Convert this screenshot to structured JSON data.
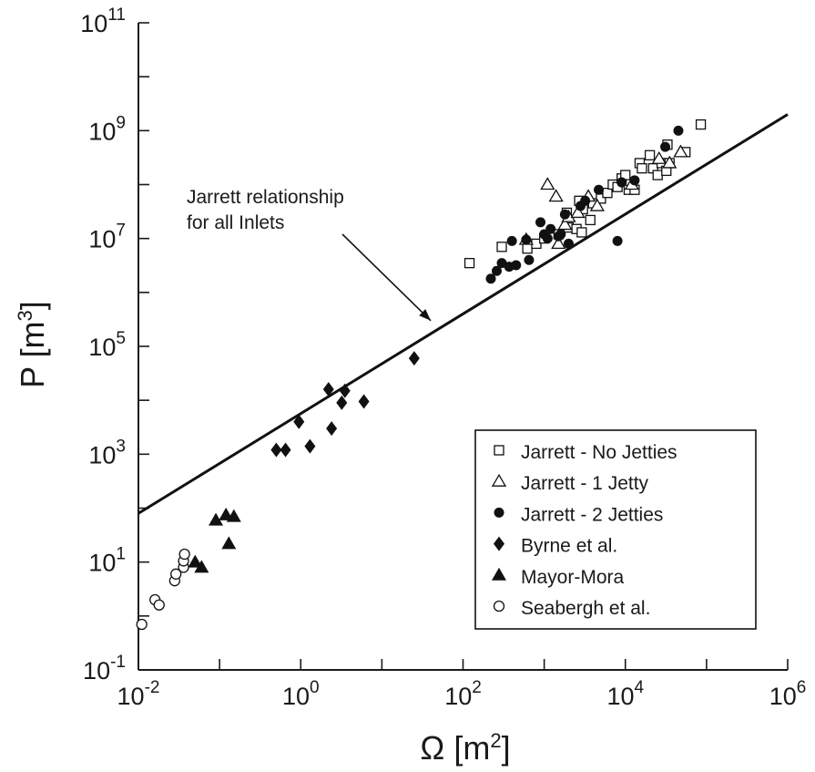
{
  "chart_data": {
    "type": "scatter",
    "title": "",
    "x_axis": {
      "label": "Ω [m²]",
      "label_base": "Ω [m",
      "label_sup": "2",
      "label_end": "]",
      "scale": "log",
      "range": [
        0.01,
        1000000
      ],
      "ticks": [
        {
          "value": 0.01,
          "base": "10",
          "exp": "-2"
        },
        {
          "value": 1,
          "base": "10",
          "exp": "0"
        },
        {
          "value": 100,
          "base": "10",
          "exp": "2"
        },
        {
          "value": 10000,
          "base": "10",
          "exp": "4"
        },
        {
          "value": 1000000,
          "base": "10",
          "exp": "6"
        }
      ]
    },
    "y_axis": {
      "label": "P [m³]",
      "label_base": "P [m",
      "label_sup": "3",
      "label_end": "]",
      "scale": "log",
      "range": [
        0.1,
        100000000000
      ],
      "ticks": [
        {
          "value": 0.1,
          "base": "10",
          "exp": "-1"
        },
        {
          "value": 10,
          "base": "10",
          "exp": "1"
        },
        {
          "value": 1000,
          "base": "10",
          "exp": "3"
        },
        {
          "value": 100000,
          "base": "10",
          "exp": "5"
        },
        {
          "value": 10000000,
          "base": "10",
          "exp": "7"
        },
        {
          "value": 1000000000,
          "base": "10",
          "exp": "9"
        },
        {
          "value": 100000000000,
          "base": "10",
          "exp": "11"
        }
      ]
    },
    "grid": false,
    "legend_position": "bottom-right",
    "series": [
      {
        "name": "Jarrett - No Jetties",
        "marker": "square-open",
        "points": [
          [
            120,
            3500000
          ],
          [
            300,
            7000000
          ],
          [
            620,
            6500000
          ],
          [
            800,
            8000000
          ],
          [
            1000,
            10000000
          ],
          [
            1500,
            12000000
          ],
          [
            2000,
            16000000
          ],
          [
            2500,
            15000000
          ],
          [
            2900,
            13000000
          ],
          [
            3700,
            22000000
          ],
          [
            1900,
            30000000
          ],
          [
            2700,
            50000000
          ],
          [
            3000,
            35000000
          ],
          [
            4000,
            45000000
          ],
          [
            5000,
            55000000
          ],
          [
            6000,
            70000000
          ],
          [
            7000,
            100000000
          ],
          [
            8000,
            90000000
          ],
          [
            9000,
            130000000
          ],
          [
            10000,
            150000000
          ],
          [
            11000,
            80000000
          ],
          [
            13000,
            80000000
          ],
          [
            15000,
            250000000
          ],
          [
            16000,
            200000000
          ],
          [
            20000,
            350000000
          ],
          [
            22000,
            200000000
          ],
          [
            25000,
            150000000
          ],
          [
            28000,
            250000000
          ],
          [
            32000,
            180000000
          ],
          [
            33000,
            550000000
          ],
          [
            35000,
            250000000
          ],
          [
            55000,
            400000000
          ],
          [
            85000,
            1300000000
          ]
        ]
      },
      {
        "name": "Jarrett - 1 Jetty",
        "marker": "triangle-open",
        "points": [
          [
            600,
            9500000
          ],
          [
            1100,
            100000000
          ],
          [
            1400,
            60000000
          ],
          [
            1500,
            8000000
          ],
          [
            1800,
            18000000
          ],
          [
            2000,
            25000000
          ],
          [
            2600,
            30000000
          ],
          [
            3500,
            60000000
          ],
          [
            4500,
            40000000
          ],
          [
            12000,
            100000000
          ],
          [
            26000,
            300000000
          ],
          [
            35000,
            250000000
          ],
          [
            48000,
            400000000
          ]
        ]
      },
      {
        "name": "Jarrett - 2 Jetties",
        "marker": "circle-filled",
        "points": [
          [
            220,
            1800000
          ],
          [
            260,
            2500000
          ],
          [
            300,
            3500000
          ],
          [
            370,
            3000000
          ],
          [
            400,
            9000000
          ],
          [
            450,
            3200000
          ],
          [
            600,
            9500000
          ],
          [
            650,
            4000000
          ],
          [
            900,
            20000000
          ],
          [
            1000,
            12000000
          ],
          [
            1100,
            10000000
          ],
          [
            1200,
            15000000
          ],
          [
            1500,
            11000000
          ],
          [
            1600,
            12000000
          ],
          [
            1800,
            28000000
          ],
          [
            2000,
            8000000
          ],
          [
            2800,
            40000000
          ],
          [
            3200,
            50000000
          ],
          [
            4700,
            80000000
          ],
          [
            8000,
            9000000
          ],
          [
            9000,
            110000000
          ],
          [
            13000,
            120000000
          ],
          [
            31000,
            500000000
          ],
          [
            45000,
            1000000000
          ]
        ]
      },
      {
        "name": "Byrne et al.",
        "marker": "diamond-filled",
        "points": [
          [
            0.5,
            1200
          ],
          [
            0.65,
            1200
          ],
          [
            0.95,
            4000
          ],
          [
            1.3,
            1400
          ],
          [
            2.2,
            16000
          ],
          [
            2.4,
            3000
          ],
          [
            3.2,
            9000
          ],
          [
            3.5,
            15000
          ],
          [
            6,
            9500
          ],
          [
            25,
            60000
          ]
        ]
      },
      {
        "name": "Mayor-Mora",
        "marker": "triangle-filled",
        "points": [
          [
            0.05,
            10
          ],
          [
            0.06,
            8
          ],
          [
            0.09,
            60
          ],
          [
            0.12,
            75
          ],
          [
            0.13,
            22
          ],
          [
            0.15,
            70
          ]
        ]
      },
      {
        "name": "Seabergh et al.",
        "marker": "circle-open",
        "points": [
          [
            0.011,
            0.7
          ],
          [
            0.016,
            2
          ],
          [
            0.018,
            1.6
          ],
          [
            0.028,
            4.5
          ],
          [
            0.029,
            6
          ],
          [
            0.036,
            8
          ],
          [
            0.036,
            10.5
          ],
          [
            0.037,
            14
          ]
        ]
      }
    ],
    "fit_line": {
      "x": [
        0.01,
        1000000
      ],
      "y": [
        80,
        2000000000
      ]
    },
    "annotation": {
      "lines": [
        "Jarrett relationship",
        "for all Inlets"
      ],
      "arrow_to": [
        40,
        300000
      ]
    }
  }
}
